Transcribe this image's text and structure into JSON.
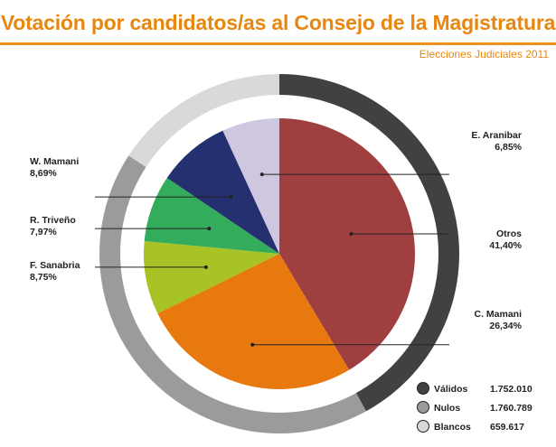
{
  "header": {
    "title": "Votación por candidatos/as al Consejo de la Magistratura",
    "subtitle": "Elecciones Judiciales 2011"
  },
  "colors": {
    "accent": "#e8870f",
    "ring_validos": "#414141",
    "ring_nulos": "#9b9b9b",
    "ring_blancos": "#d9d9d9"
  },
  "chart_data": [
    {
      "type": "pie",
      "categories": [
        "Otros",
        "C. Mamani",
        "F. Sanabria",
        "R. Triveño",
        "W. Mamani",
        "E. Aranibar"
      ],
      "values": [
        41.4,
        26.34,
        8.75,
        7.97,
        8.69,
        6.85
      ],
      "value_labels": [
        "41,40%",
        "26,34%",
        "8,75%",
        "7,97%",
        "8,69%",
        "6,85%"
      ],
      "colors": [
        "#a03f40",
        "#e8790f",
        "#a8c325",
        "#33ad5c",
        "#24306f",
        "#cfc6e0"
      ],
      "direction": "clockwise from top"
    },
    {
      "type": "pie",
      "categories": [
        "Válidos",
        "Nulos",
        "Blancos"
      ],
      "values": [
        1752010,
        1760789,
        659617
      ],
      "value_labels": [
        "1.752.010",
        "1.760.789",
        "659.617"
      ],
      "colors": [
        "#414141",
        "#9b9b9b",
        "#d9d9d9"
      ],
      "legend": "bottom-right"
    }
  ]
}
